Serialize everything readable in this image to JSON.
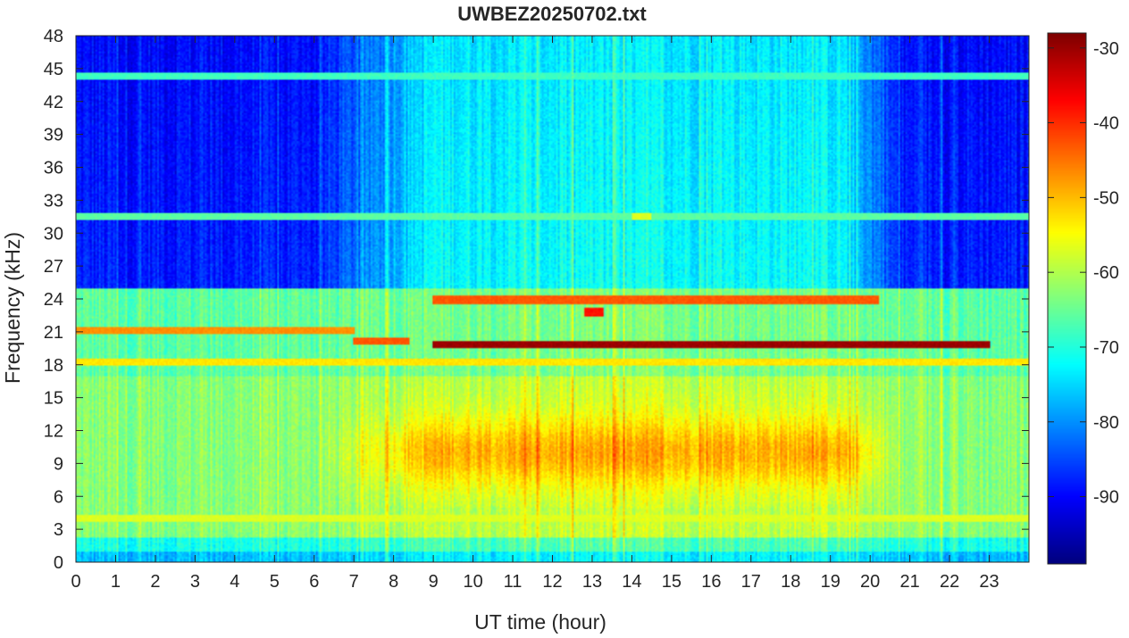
{
  "chart_data": {
    "type": "heatmap",
    "title": "UWBEZ20250702.txt",
    "xlabel": "UT time (hour)",
    "ylabel": "Frequency (kHz)",
    "xlim": [
      0,
      24
    ],
    "ylim": [
      0,
      48
    ],
    "x_ticks": [
      "0",
      "1",
      "2",
      "3",
      "4",
      "5",
      "6",
      "7",
      "8",
      "9",
      "10",
      "11",
      "12",
      "13",
      "14",
      "15",
      "16",
      "17",
      "18",
      "19",
      "20",
      "21",
      "22",
      "23"
    ],
    "y_ticks": [
      "0",
      "3",
      "6",
      "9",
      "12",
      "15",
      "18",
      "21",
      "24",
      "27",
      "30",
      "33",
      "36",
      "39",
      "42",
      "45",
      "48"
    ],
    "colorbar": {
      "colormap": "jet",
      "range": [
        -99,
        -28
      ],
      "ticks": [
        "-30",
        "-40",
        "-50",
        "-60",
        "-70",
        "-80",
        "-90"
      ]
    },
    "background_levels": {
      "low_band_0_to_17_kHz_night": -63,
      "low_band_6_to_15_kHz_day_peak": -49,
      "upper_band_25_to_48_kHz_night": -88,
      "upper_band_25_to_48_kHz_day": -72
    },
    "transmitter_lines": [
      {
        "freq_khz": 19.8,
        "start_hour": 9.0,
        "end_hour": 23.0,
        "level": -30
      },
      {
        "freq_khz": 18.2,
        "start_hour": 0.0,
        "end_hour": 24.0,
        "level": -53
      },
      {
        "freq_khz": 21.1,
        "start_hour": 0.0,
        "end_hour": 7.0,
        "level": -47
      },
      {
        "freq_khz": 20.2,
        "start_hour": 7.0,
        "end_hour": 8.4,
        "level": -43
      },
      {
        "freq_khz": 23.9,
        "start_hour": 9.0,
        "end_hour": 20.2,
        "level": -43
      },
      {
        "freq_khz": 22.8,
        "start_hour": 12.8,
        "end_hour": 13.3,
        "level": -38
      },
      {
        "freq_khz": 4.0,
        "start_hour": 0.0,
        "end_hour": 24.0,
        "level": -57
      },
      {
        "freq_khz": 31.5,
        "start_hour": 0.0,
        "end_hour": 24.0,
        "level": -66
      },
      {
        "freq_khz": 44.3,
        "start_hour": 0.0,
        "end_hour": 24.0,
        "level": -68
      },
      {
        "freq_khz": 31.5,
        "start_hour": 14.0,
        "end_hour": 14.5,
        "level": -57
      }
    ]
  }
}
